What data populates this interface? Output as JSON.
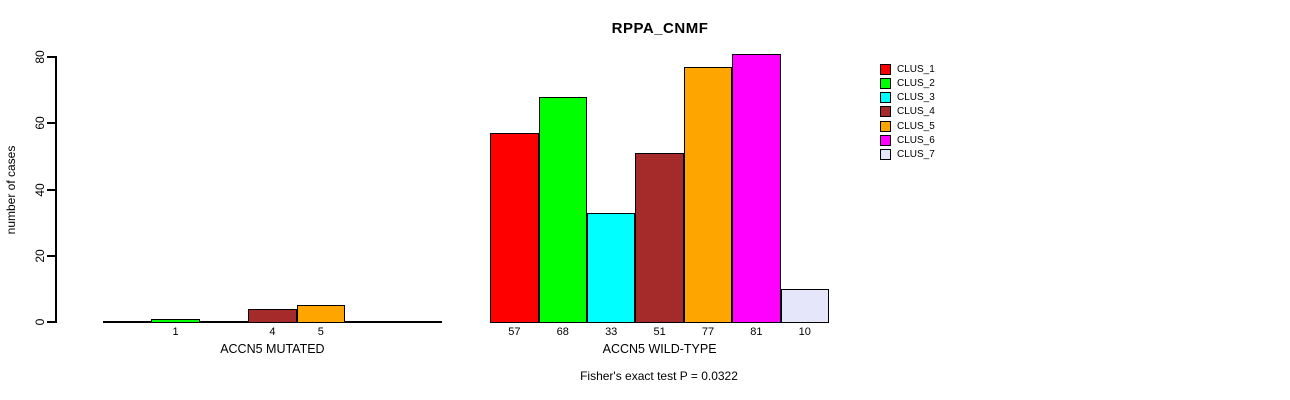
{
  "chart_data": {
    "type": "bar",
    "title": "RPPA_CNMF",
    "ylabel": "number of cases",
    "ylim": [
      0,
      80
    ],
    "yticks": [
      0,
      20,
      40,
      60,
      80
    ],
    "grid": false,
    "legend_position": "right",
    "footer": "Fisher's exact test P = 0.0322",
    "clusters": [
      {
        "label": "CLUS_1",
        "color": "#FF0000"
      },
      {
        "label": "CLUS_2",
        "color": "#00FF00"
      },
      {
        "label": "CLUS_3",
        "color": "#00FFFF"
      },
      {
        "label": "CLUS_4",
        "color": "#A52A2A"
      },
      {
        "label": "CLUS_5",
        "color": "#FFA500"
      },
      {
        "label": "CLUS_6",
        "color": "#FF00FF"
      },
      {
        "label": "CLUS_7",
        "color": "#E6E6FA"
      }
    ],
    "groups": [
      {
        "label": "ACCN5 MUTATED",
        "values": [
          0,
          1,
          0,
          4,
          5,
          0,
          0
        ],
        "bar_labels": [
          "",
          "1",
          "",
          "4",
          "5",
          "",
          ""
        ]
      },
      {
        "label": "ACCN5 WILD-TYPE",
        "values": [
          57,
          68,
          33,
          51,
          77,
          81,
          10
        ],
        "bar_labels": [
          "57",
          "68",
          "33",
          "51",
          "77",
          "81",
          "10"
        ]
      }
    ]
  }
}
